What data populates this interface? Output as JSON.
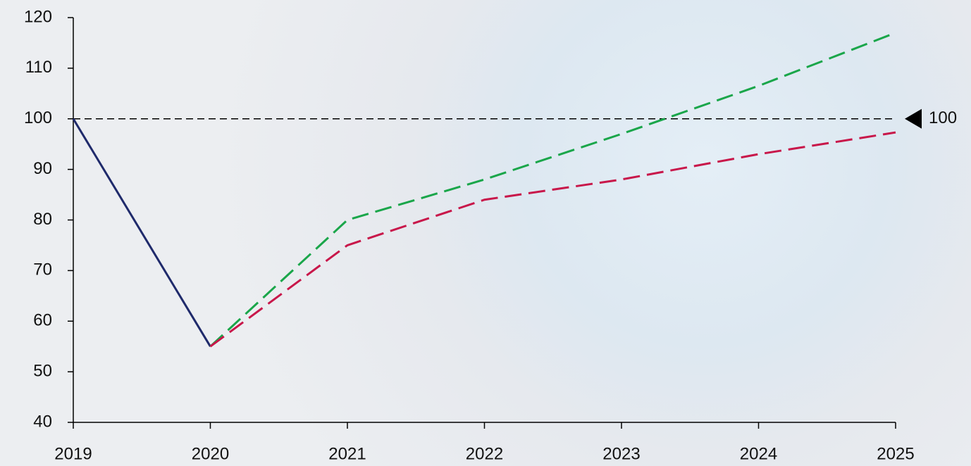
{
  "chart_data": {
    "type": "line",
    "x": [
      2019,
      2020,
      2021,
      2022,
      2023,
      2024,
      2025
    ],
    "xlim": [
      2019,
      2025
    ],
    "xticks": [
      2019,
      2020,
      2021,
      2022,
      2023,
      2024,
      2025
    ],
    "ylim": [
      40,
      120
    ],
    "yticks": [
      40,
      50,
      60,
      70,
      80,
      90,
      100,
      110,
      120
    ],
    "series": [
      {
        "color": "#1f2a6b",
        "dash": "solid",
        "values": [
          100,
          55,
          null,
          null,
          null,
          null,
          null
        ]
      },
      {
        "color": "#1aa64a",
        "dash": "dashed",
        "values": [
          null,
          55,
          80,
          88,
          97,
          106.5,
          117
        ]
      },
      {
        "color": "#c8174a",
        "dash": "dashed",
        "values": [
          null,
          55,
          75,
          84,
          88,
          93,
          97.3
        ]
      }
    ],
    "reference_line": {
      "value": 100,
      "color": "#000000"
    }
  }
}
